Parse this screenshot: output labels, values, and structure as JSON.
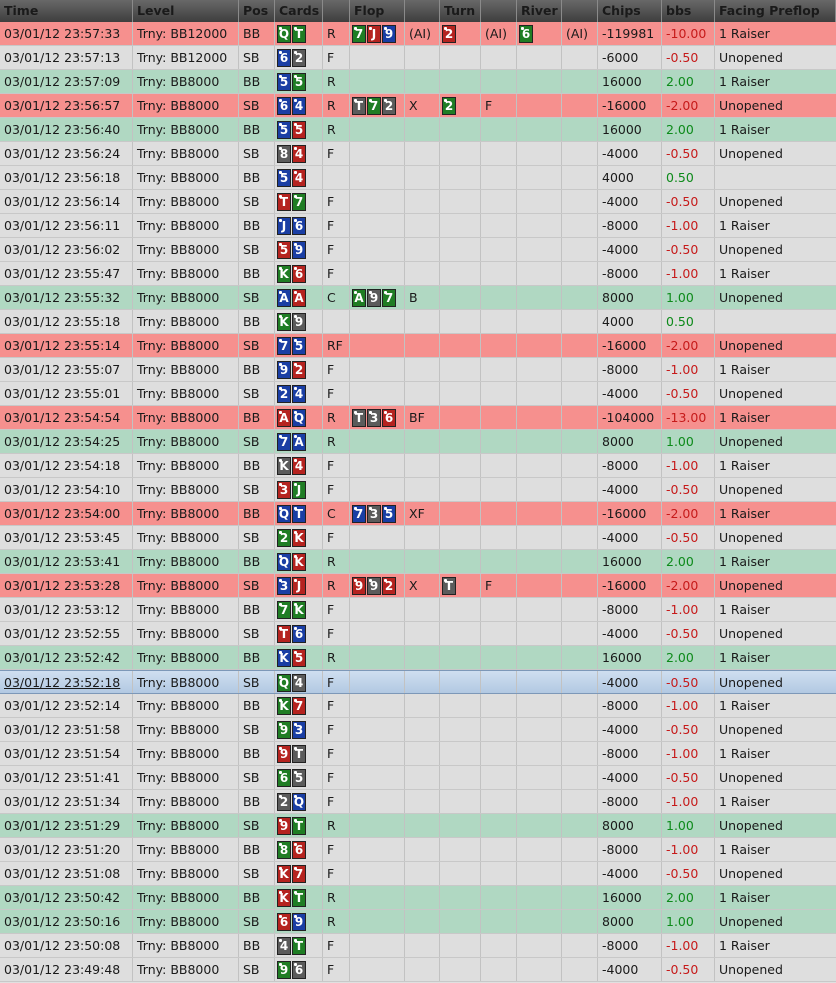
{
  "columns": [
    "Time",
    "Level",
    "Pos",
    "Cards",
    "",
    "Flop",
    "",
    "Turn",
    "",
    "River",
    "",
    "Chips",
    "bbs",
    "Facing Preflop"
  ],
  "colors": {
    "win": "#b0d8c2",
    "loss": "#f6908e",
    "neutral": "#dedede",
    "selected": "#c3d6ec",
    "hearts": "#b5231f",
    "diamonds": "#1a3ea4",
    "clubs": "#1f7d24",
    "spades": "#5b5b5b"
  },
  "rows": [
    {
      "time": "03/01/12 23:57:33",
      "level": "Trny: BB12000",
      "pos": "BB",
      "cards": [
        [
          "Q",
          "c"
        ],
        [
          "T",
          "c"
        ]
      ],
      "pre": "R",
      "flop": [
        [
          "7",
          "c"
        ],
        [
          "J",
          "h"
        ],
        [
          "9",
          "d"
        ]
      ],
      "flop_act": "(AI)",
      "turn": [
        [
          "2",
          "h"
        ]
      ],
      "turn_act": "(AI)",
      "river": [
        [
          "6",
          "c"
        ]
      ],
      "river_act": "(AI)",
      "chips": "-119981",
      "bbs": "-10.00",
      "facing": "1 Raiser",
      "status": "red"
    },
    {
      "time": "03/01/12 23:57:13",
      "level": "Trny: BB12000",
      "pos": "SB",
      "cards": [
        [
          "6",
          "d"
        ],
        [
          "2",
          "s"
        ]
      ],
      "pre": "F",
      "flop": [],
      "flop_act": "",
      "turn": [],
      "turn_act": "",
      "river": [],
      "river_act": "",
      "chips": "-6000",
      "bbs": "-0.50",
      "facing": "Unopened",
      "status": "gray"
    },
    {
      "time": "03/01/12 23:57:09",
      "level": "Trny: BB8000",
      "pos": "BB",
      "cards": [
        [
          "5",
          "d"
        ],
        [
          "5",
          "c"
        ]
      ],
      "pre": "R",
      "flop": [],
      "flop_act": "",
      "turn": [],
      "turn_act": "",
      "river": [],
      "river_act": "",
      "chips": "16000",
      "bbs": "2.00",
      "facing": "1 Raiser",
      "status": "green"
    },
    {
      "time": "03/01/12 23:56:57",
      "level": "Trny: BB8000",
      "pos": "SB",
      "cards": [
        [
          "6",
          "d"
        ],
        [
          "4",
          "d"
        ]
      ],
      "pre": "R",
      "flop": [
        [
          "T",
          "s"
        ],
        [
          "7",
          "c"
        ],
        [
          "2",
          "s"
        ]
      ],
      "flop_act": "X",
      "turn": [
        [
          "2",
          "c"
        ]
      ],
      "turn_act": "F",
      "river": [],
      "river_act": "",
      "chips": "-16000",
      "bbs": "-2.00",
      "facing": "Unopened",
      "status": "red"
    },
    {
      "time": "03/01/12 23:56:40",
      "level": "Trny: BB8000",
      "pos": "BB",
      "cards": [
        [
          "5",
          "d"
        ],
        [
          "5",
          "h"
        ]
      ],
      "pre": "R",
      "flop": [],
      "flop_act": "",
      "turn": [],
      "turn_act": "",
      "river": [],
      "river_act": "",
      "chips": "16000",
      "bbs": "2.00",
      "facing": "1 Raiser",
      "status": "green"
    },
    {
      "time": "03/01/12 23:56:24",
      "level": "Trny: BB8000",
      "pos": "SB",
      "cards": [
        [
          "8",
          "s"
        ],
        [
          "4",
          "h"
        ]
      ],
      "pre": "F",
      "flop": [],
      "flop_act": "",
      "turn": [],
      "turn_act": "",
      "river": [],
      "river_act": "",
      "chips": "-4000",
      "bbs": "-0.50",
      "facing": "Unopened",
      "status": "gray"
    },
    {
      "time": "03/01/12 23:56:18",
      "level": "Trny: BB8000",
      "pos": "BB",
      "cards": [
        [
          "5",
          "d"
        ],
        [
          "4",
          "h"
        ]
      ],
      "pre": "",
      "flop": [],
      "flop_act": "",
      "turn": [],
      "turn_act": "",
      "river": [],
      "river_act": "",
      "chips": "4000",
      "bbs": "0.50",
      "facing": "",
      "status": "gray"
    },
    {
      "time": "03/01/12 23:56:14",
      "level": "Trny: BB8000",
      "pos": "SB",
      "cards": [
        [
          "T",
          "h"
        ],
        [
          "7",
          "c"
        ]
      ],
      "pre": "F",
      "flop": [],
      "flop_act": "",
      "turn": [],
      "turn_act": "",
      "river": [],
      "river_act": "",
      "chips": "-4000",
      "bbs": "-0.50",
      "facing": "Unopened",
      "status": "gray"
    },
    {
      "time": "03/01/12 23:56:11",
      "level": "Trny: BB8000",
      "pos": "BB",
      "cards": [
        [
          "J",
          "d"
        ],
        [
          "6",
          "d"
        ]
      ],
      "pre": "F",
      "flop": [],
      "flop_act": "",
      "turn": [],
      "turn_act": "",
      "river": [],
      "river_act": "",
      "chips": "-8000",
      "bbs": "-1.00",
      "facing": "1 Raiser",
      "status": "gray"
    },
    {
      "time": "03/01/12 23:56:02",
      "level": "Trny: BB8000",
      "pos": "SB",
      "cards": [
        [
          "5",
          "h"
        ],
        [
          "9",
          "d"
        ]
      ],
      "pre": "F",
      "flop": [],
      "flop_act": "",
      "turn": [],
      "turn_act": "",
      "river": [],
      "river_act": "",
      "chips": "-4000",
      "bbs": "-0.50",
      "facing": "Unopened",
      "status": "gray"
    },
    {
      "time": "03/01/12 23:55:47",
      "level": "Trny: BB8000",
      "pos": "BB",
      "cards": [
        [
          "K",
          "c"
        ],
        [
          "6",
          "h"
        ]
      ],
      "pre": "F",
      "flop": [],
      "flop_act": "",
      "turn": [],
      "turn_act": "",
      "river": [],
      "river_act": "",
      "chips": "-8000",
      "bbs": "-1.00",
      "facing": "1 Raiser",
      "status": "gray"
    },
    {
      "time": "03/01/12 23:55:32",
      "level": "Trny: BB8000",
      "pos": "SB",
      "cards": [
        [
          "A",
          "d"
        ],
        [
          "A",
          "h"
        ]
      ],
      "pre": "C",
      "flop": [
        [
          "A",
          "c"
        ],
        [
          "9",
          "s"
        ],
        [
          "7",
          "c"
        ]
      ],
      "flop_act": "B",
      "turn": [],
      "turn_act": "",
      "river": [],
      "river_act": "",
      "chips": "8000",
      "bbs": "1.00",
      "facing": "Unopened",
      "status": "green"
    },
    {
      "time": "03/01/12 23:55:18",
      "level": "Trny: BB8000",
      "pos": "BB",
      "cards": [
        [
          "K",
          "c"
        ],
        [
          "9",
          "s"
        ]
      ],
      "pre": "",
      "flop": [],
      "flop_act": "",
      "turn": [],
      "turn_act": "",
      "river": [],
      "river_act": "",
      "chips": "4000",
      "bbs": "0.50",
      "facing": "",
      "status": "gray"
    },
    {
      "time": "03/01/12 23:55:14",
      "level": "Trny: BB8000",
      "pos": "SB",
      "cards": [
        [
          "7",
          "d"
        ],
        [
          "5",
          "d"
        ]
      ],
      "pre": "RF",
      "flop": [],
      "flop_act": "",
      "turn": [],
      "turn_act": "",
      "river": [],
      "river_act": "",
      "chips": "-16000",
      "bbs": "-2.00",
      "facing": "Unopened",
      "status": "red"
    },
    {
      "time": "03/01/12 23:55:07",
      "level": "Trny: BB8000",
      "pos": "BB",
      "cards": [
        [
          "9",
          "d"
        ],
        [
          "2",
          "h"
        ]
      ],
      "pre": "F",
      "flop": [],
      "flop_act": "",
      "turn": [],
      "turn_act": "",
      "river": [],
      "river_act": "",
      "chips": "-8000",
      "bbs": "-1.00",
      "facing": "1 Raiser",
      "status": "gray"
    },
    {
      "time": "03/01/12 23:55:01",
      "level": "Trny: BB8000",
      "pos": "SB",
      "cards": [
        [
          "2",
          "d"
        ],
        [
          "4",
          "d"
        ]
      ],
      "pre": "F",
      "flop": [],
      "flop_act": "",
      "turn": [],
      "turn_act": "",
      "river": [],
      "river_act": "",
      "chips": "-4000",
      "bbs": "-0.50",
      "facing": "Unopened",
      "status": "gray"
    },
    {
      "time": "03/01/12 23:54:54",
      "level": "Trny: BB8000",
      "pos": "BB",
      "cards": [
        [
          "A",
          "h"
        ],
        [
          "Q",
          "d"
        ]
      ],
      "pre": "R",
      "flop": [
        [
          "T",
          "s"
        ],
        [
          "3",
          "s"
        ],
        [
          "6",
          "h"
        ]
      ],
      "flop_act": "BF",
      "turn": [],
      "turn_act": "",
      "river": [],
      "river_act": "",
      "chips": "-104000",
      "bbs": "-13.00",
      "facing": "1 Raiser",
      "status": "red"
    },
    {
      "time": "03/01/12 23:54:25",
      "level": "Trny: BB8000",
      "pos": "SB",
      "cards": [
        [
          "7",
          "d"
        ],
        [
          "A",
          "d"
        ]
      ],
      "pre": "R",
      "flop": [],
      "flop_act": "",
      "turn": [],
      "turn_act": "",
      "river": [],
      "river_act": "",
      "chips": "8000",
      "bbs": "1.00",
      "facing": "Unopened",
      "status": "green"
    },
    {
      "time": "03/01/12 23:54:18",
      "level": "Trny: BB8000",
      "pos": "BB",
      "cards": [
        [
          "K",
          "s"
        ],
        [
          "4",
          "h"
        ]
      ],
      "pre": "F",
      "flop": [],
      "flop_act": "",
      "turn": [],
      "turn_act": "",
      "river": [],
      "river_act": "",
      "chips": "-8000",
      "bbs": "-1.00",
      "facing": "1 Raiser",
      "status": "gray"
    },
    {
      "time": "03/01/12 23:54:10",
      "level": "Trny: BB8000",
      "pos": "SB",
      "cards": [
        [
          "3",
          "h"
        ],
        [
          "J",
          "c"
        ]
      ],
      "pre": "F",
      "flop": [],
      "flop_act": "",
      "turn": [],
      "turn_act": "",
      "river": [],
      "river_act": "",
      "chips": "-4000",
      "bbs": "-0.50",
      "facing": "Unopened",
      "status": "gray"
    },
    {
      "time": "03/01/12 23:54:00",
      "level": "Trny: BB8000",
      "pos": "BB",
      "cards": [
        [
          "Q",
          "d"
        ],
        [
          "T",
          "d"
        ]
      ],
      "pre": "C",
      "flop": [
        [
          "7",
          "d"
        ],
        [
          "3",
          "s"
        ],
        [
          "5",
          "d"
        ]
      ],
      "flop_act": "XF",
      "turn": [],
      "turn_act": "",
      "river": [],
      "river_act": "",
      "chips": "-16000",
      "bbs": "-2.00",
      "facing": "1 Raiser",
      "status": "red"
    },
    {
      "time": "03/01/12 23:53:45",
      "level": "Trny: BB8000",
      "pos": "SB",
      "cards": [
        [
          "2",
          "c"
        ],
        [
          "K",
          "h"
        ]
      ],
      "pre": "F",
      "flop": [],
      "flop_act": "",
      "turn": [],
      "turn_act": "",
      "river": [],
      "river_act": "",
      "chips": "-4000",
      "bbs": "-0.50",
      "facing": "Unopened",
      "status": "gray"
    },
    {
      "time": "03/01/12 23:53:41",
      "level": "Trny: BB8000",
      "pos": "BB",
      "cards": [
        [
          "Q",
          "d"
        ],
        [
          "K",
          "h"
        ]
      ],
      "pre": "R",
      "flop": [],
      "flop_act": "",
      "turn": [],
      "turn_act": "",
      "river": [],
      "river_act": "",
      "chips": "16000",
      "bbs": "2.00",
      "facing": "1 Raiser",
      "status": "green"
    },
    {
      "time": "03/01/12 23:53:28",
      "level": "Trny: BB8000",
      "pos": "SB",
      "cards": [
        [
          "3",
          "d"
        ],
        [
          "J",
          "h"
        ]
      ],
      "pre": "R",
      "flop": [
        [
          "9",
          "h"
        ],
        [
          "9",
          "s"
        ],
        [
          "2",
          "h"
        ]
      ],
      "flop_act": "X",
      "turn": [
        [
          "T",
          "s"
        ]
      ],
      "turn_act": "F",
      "river": [],
      "river_act": "",
      "chips": "-16000",
      "bbs": "-2.00",
      "facing": "Unopened",
      "status": "red"
    },
    {
      "time": "03/01/12 23:53:12",
      "level": "Trny: BB8000",
      "pos": "BB",
      "cards": [
        [
          "7",
          "c"
        ],
        [
          "K",
          "c"
        ]
      ],
      "pre": "F",
      "flop": [],
      "flop_act": "",
      "turn": [],
      "turn_act": "",
      "river": [],
      "river_act": "",
      "chips": "-8000",
      "bbs": "-1.00",
      "facing": "1 Raiser",
      "status": "gray"
    },
    {
      "time": "03/01/12 23:52:55",
      "level": "Trny: BB8000",
      "pos": "SB",
      "cards": [
        [
          "T",
          "h"
        ],
        [
          "6",
          "d"
        ]
      ],
      "pre": "F",
      "flop": [],
      "flop_act": "",
      "turn": [],
      "turn_act": "",
      "river": [],
      "river_act": "",
      "chips": "-4000",
      "bbs": "-0.50",
      "facing": "Unopened",
      "status": "gray"
    },
    {
      "time": "03/01/12 23:52:42",
      "level": "Trny: BB8000",
      "pos": "BB",
      "cards": [
        [
          "K",
          "d"
        ],
        [
          "5",
          "h"
        ]
      ],
      "pre": "R",
      "flop": [],
      "flop_act": "",
      "turn": [],
      "turn_act": "",
      "river": [],
      "river_act": "",
      "chips": "16000",
      "bbs": "2.00",
      "facing": "1 Raiser",
      "status": "green"
    },
    {
      "time": "03/01/12 23:52:18",
      "level": "Trny: BB8000",
      "pos": "SB",
      "cards": [
        [
          "Q",
          "c"
        ],
        [
          "4",
          "s"
        ]
      ],
      "pre": "F",
      "flop": [],
      "flop_act": "",
      "turn": [],
      "turn_act": "",
      "river": [],
      "river_act": "",
      "chips": "-4000",
      "bbs": "-0.50",
      "facing": "Unopened",
      "status": "sel"
    },
    {
      "time": "03/01/12 23:52:14",
      "level": "Trny: BB8000",
      "pos": "BB",
      "cards": [
        [
          "K",
          "c"
        ],
        [
          "7",
          "h"
        ]
      ],
      "pre": "F",
      "flop": [],
      "flop_act": "",
      "turn": [],
      "turn_act": "",
      "river": [],
      "river_act": "",
      "chips": "-8000",
      "bbs": "-1.00",
      "facing": "1 Raiser",
      "status": "gray"
    },
    {
      "time": "03/01/12 23:51:58",
      "level": "Trny: BB8000",
      "pos": "SB",
      "cards": [
        [
          "9",
          "c"
        ],
        [
          "3",
          "d"
        ]
      ],
      "pre": "F",
      "flop": [],
      "flop_act": "",
      "turn": [],
      "turn_act": "",
      "river": [],
      "river_act": "",
      "chips": "-4000",
      "bbs": "-0.50",
      "facing": "Unopened",
      "status": "gray"
    },
    {
      "time": "03/01/12 23:51:54",
      "level": "Trny: BB8000",
      "pos": "BB",
      "cards": [
        [
          "9",
          "h"
        ],
        [
          "T",
          "s"
        ]
      ],
      "pre": "F",
      "flop": [],
      "flop_act": "",
      "turn": [],
      "turn_act": "",
      "river": [],
      "river_act": "",
      "chips": "-8000",
      "bbs": "-1.00",
      "facing": "1 Raiser",
      "status": "gray"
    },
    {
      "time": "03/01/12 23:51:41",
      "level": "Trny: BB8000",
      "pos": "SB",
      "cards": [
        [
          "6",
          "c"
        ],
        [
          "5",
          "s"
        ]
      ],
      "pre": "F",
      "flop": [],
      "flop_act": "",
      "turn": [],
      "turn_act": "",
      "river": [],
      "river_act": "",
      "chips": "-4000",
      "bbs": "-0.50",
      "facing": "Unopened",
      "status": "gray"
    },
    {
      "time": "03/01/12 23:51:34",
      "level": "Trny: BB8000",
      "pos": "BB",
      "cards": [
        [
          "2",
          "s"
        ],
        [
          "Q",
          "d"
        ]
      ],
      "pre": "F",
      "flop": [],
      "flop_act": "",
      "turn": [],
      "turn_act": "",
      "river": [],
      "river_act": "",
      "chips": "-8000",
      "bbs": "-1.00",
      "facing": "1 Raiser",
      "status": "gray"
    },
    {
      "time": "03/01/12 23:51:29",
      "level": "Trny: BB8000",
      "pos": "SB",
      "cards": [
        [
          "9",
          "h"
        ],
        [
          "T",
          "c"
        ]
      ],
      "pre": "R",
      "flop": [],
      "flop_act": "",
      "turn": [],
      "turn_act": "",
      "river": [],
      "river_act": "",
      "chips": "8000",
      "bbs": "1.00",
      "facing": "Unopened",
      "status": "green"
    },
    {
      "time": "03/01/12 23:51:20",
      "level": "Trny: BB8000",
      "pos": "BB",
      "cards": [
        [
          "8",
          "c"
        ],
        [
          "6",
          "h"
        ]
      ],
      "pre": "F",
      "flop": [],
      "flop_act": "",
      "turn": [],
      "turn_act": "",
      "river": [],
      "river_act": "",
      "chips": "-8000",
      "bbs": "-1.00",
      "facing": "1 Raiser",
      "status": "gray"
    },
    {
      "time": "03/01/12 23:51:08",
      "level": "Trny: BB8000",
      "pos": "SB",
      "cards": [
        [
          "K",
          "h"
        ],
        [
          "7",
          "h"
        ]
      ],
      "pre": "F",
      "flop": [],
      "flop_act": "",
      "turn": [],
      "turn_act": "",
      "river": [],
      "river_act": "",
      "chips": "-4000",
      "bbs": "-0.50",
      "facing": "Unopened",
      "status": "gray"
    },
    {
      "time": "03/01/12 23:50:42",
      "level": "Trny: BB8000",
      "pos": "BB",
      "cards": [
        [
          "K",
          "h"
        ],
        [
          "T",
          "c"
        ]
      ],
      "pre": "R",
      "flop": [],
      "flop_act": "",
      "turn": [],
      "turn_act": "",
      "river": [],
      "river_act": "",
      "chips": "16000",
      "bbs": "2.00",
      "facing": "1 Raiser",
      "status": "green"
    },
    {
      "time": "03/01/12 23:50:16",
      "level": "Trny: BB8000",
      "pos": "SB",
      "cards": [
        [
          "6",
          "h"
        ],
        [
          "9",
          "d"
        ]
      ],
      "pre": "R",
      "flop": [],
      "flop_act": "",
      "turn": [],
      "turn_act": "",
      "river": [],
      "river_act": "",
      "chips": "8000",
      "bbs": "1.00",
      "facing": "Unopened",
      "status": "green"
    },
    {
      "time": "03/01/12 23:50:08",
      "level": "Trny: BB8000",
      "pos": "BB",
      "cards": [
        [
          "4",
          "s"
        ],
        [
          "T",
          "c"
        ]
      ],
      "pre": "F",
      "flop": [],
      "flop_act": "",
      "turn": [],
      "turn_act": "",
      "river": [],
      "river_act": "",
      "chips": "-8000",
      "bbs": "-1.00",
      "facing": "1 Raiser",
      "status": "gray"
    },
    {
      "time": "03/01/12 23:49:48",
      "level": "Trny: BB8000",
      "pos": "SB",
      "cards": [
        [
          "9",
          "c"
        ],
        [
          "6",
          "s"
        ]
      ],
      "pre": "F",
      "flop": [],
      "flop_act": "",
      "turn": [],
      "turn_act": "",
      "river": [],
      "river_act": "",
      "chips": "-4000",
      "bbs": "-0.50",
      "facing": "Unopened",
      "status": "gray"
    }
  ]
}
